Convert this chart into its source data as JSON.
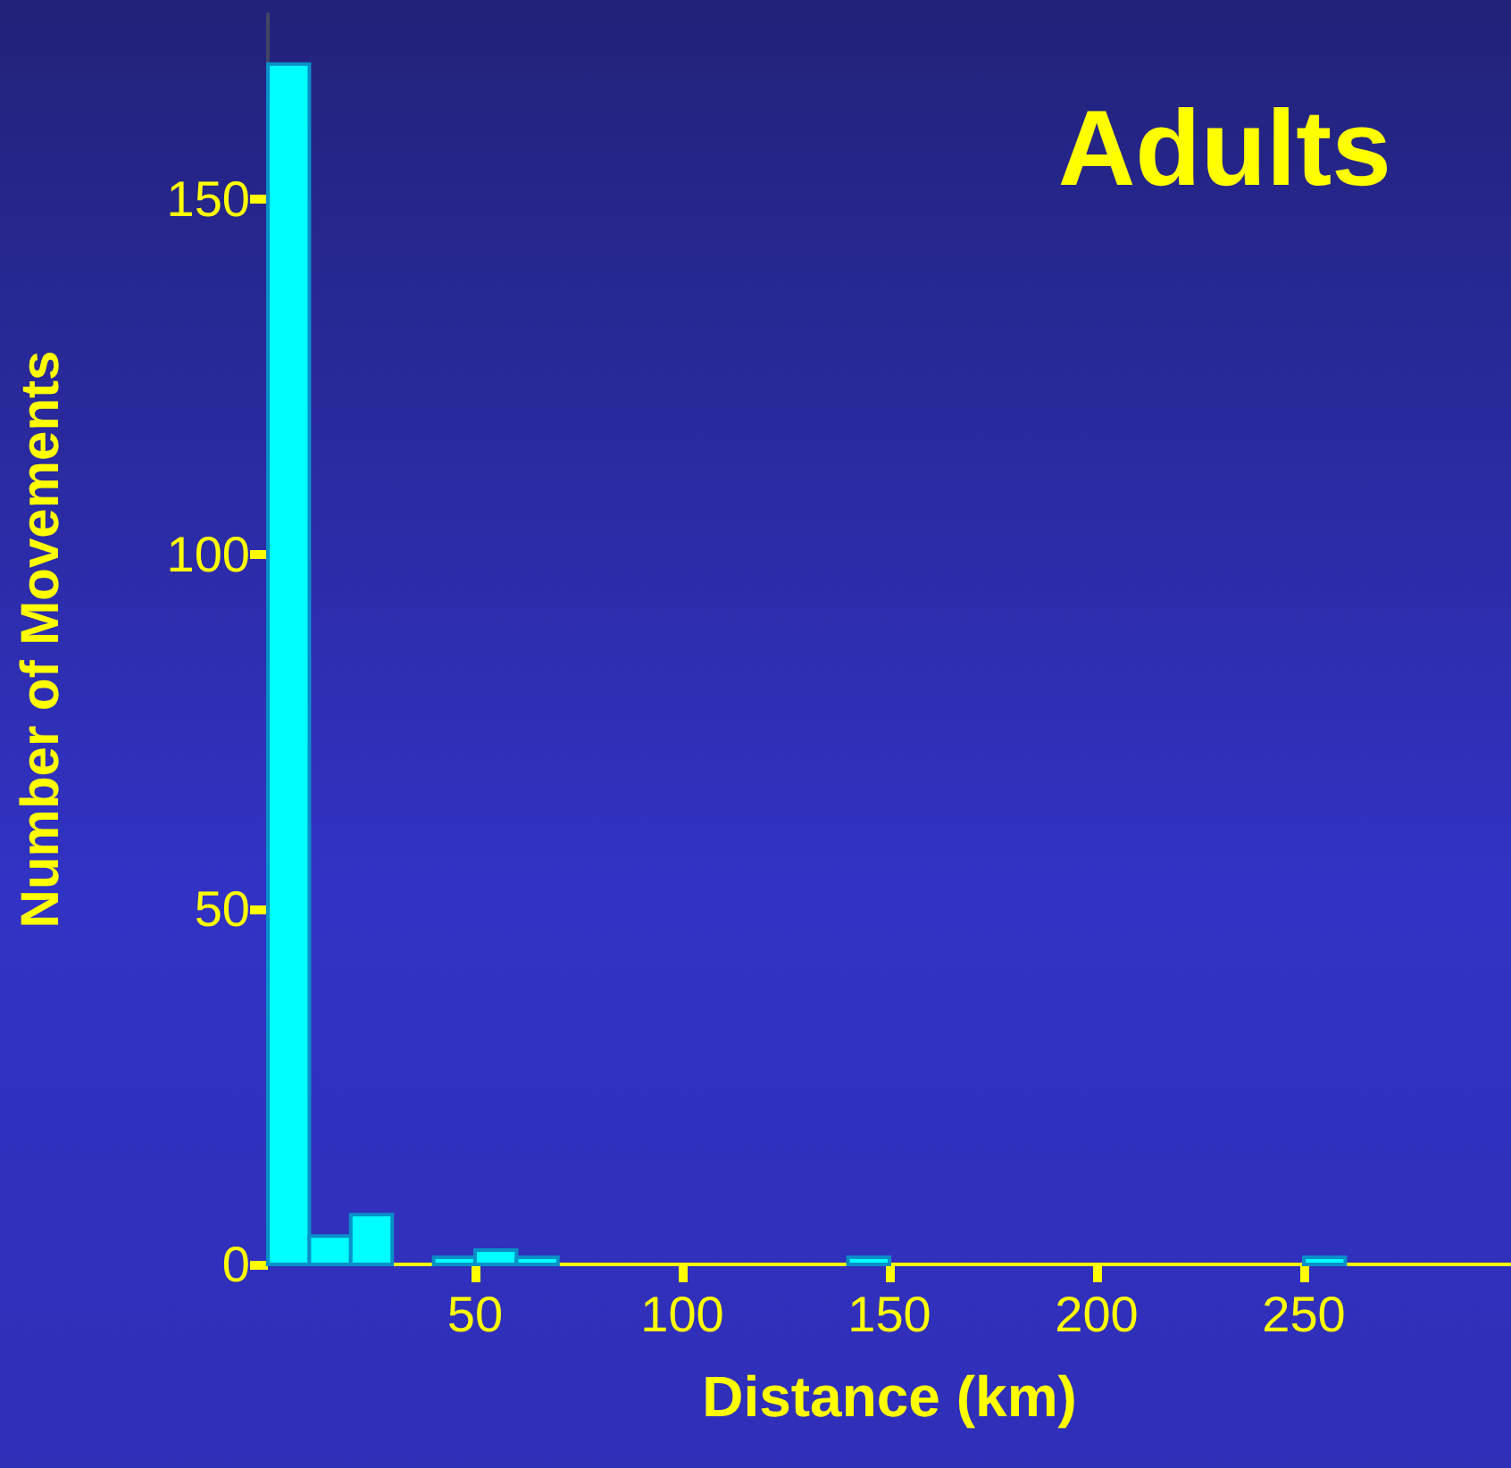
{
  "chart_data": {
    "type": "histogram",
    "title": "Adults",
    "xlabel": "Distance (km)",
    "ylabel": "Number of Movements",
    "bins": [
      0,
      10,
      20,
      30,
      40,
      50,
      60,
      70,
      80,
      90,
      100,
      110,
      120,
      130,
      140,
      150,
      160,
      170,
      180,
      190,
      200,
      210,
      220,
      230,
      240,
      250,
      260
    ],
    "values": [
      169,
      4,
      7,
      0,
      1,
      2,
      1,
      0,
      0,
      0,
      0,
      0,
      0,
      0,
      1,
      0,
      0,
      0,
      0,
      0,
      0,
      0,
      0,
      0,
      0,
      1
    ],
    "color": "#00ffff",
    "xlim": [
      0,
      300
    ],
    "xticks": [
      50,
      100,
      150,
      200,
      250
    ],
    "ylim": [
      0,
      176
    ],
    "yticks": [
      0,
      50,
      100,
      150
    ],
    "grid": false
  }
}
